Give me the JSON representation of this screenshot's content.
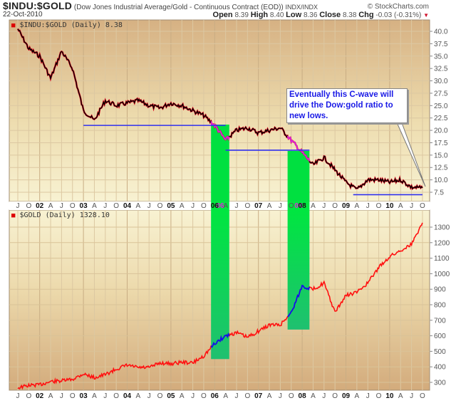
{
  "header": {
    "symbol": "$INDU:$GOLD",
    "description": "(Dow Jones Industrial Average/Gold - Continuous Contract (EOD))",
    "exchange": "INDX/INDX",
    "copyright": "© StockCharts.com",
    "date": "22-Oct-2010",
    "ohlc": {
      "open_label": "Open",
      "open": "8.39",
      "high_label": "High",
      "high": "8.40",
      "low_label": "Low",
      "low": "8.36",
      "close_label": "Close",
      "close": "8.38",
      "chg_label": "Chg",
      "chg": "-0.03 (-0.31%)",
      "chg_icon": "down-triangle-icon"
    }
  },
  "top_panel": {
    "title": "$INDU:$GOLD (Daily) 8.38"
  },
  "bottom_panel": {
    "title": "$GOLD (Daily) 1328.10"
  },
  "annotation": {
    "text": "Eventually this C-wave will drive the Dow:gold ratio to new lows."
  },
  "colors": {
    "background_top": "#f7f0cf",
    "background_bottom": "#d4ae80",
    "price_bar": "#000000",
    "price_bar_down": "#e0001a",
    "gold_line": "#ff1010",
    "highlight_line": "#1010ee",
    "support_line": "#3030ee",
    "highlight_zone": "#00e040",
    "ratio_highlight": "#dd22dd"
  },
  "chart_data": [
    {
      "type": "line",
      "title": "$INDU:$GOLD (Daily) 8.38",
      "xlabel": "",
      "ylabel": "",
      "ylim": [
        6.5,
        42
      ],
      "yticks": [
        7.5,
        10.0,
        12.5,
        15.0,
        17.5,
        20.0,
        22.5,
        25.0,
        27.5,
        30.0,
        32.5,
        35.0,
        37.5,
        40.0
      ],
      "xticks": [
        "J",
        "O",
        "02",
        "A",
        "J",
        "O",
        "03",
        "A",
        "J",
        "O",
        "04",
        "A",
        "J",
        "O",
        "05",
        "A",
        "J",
        "O",
        "06",
        "A",
        "J",
        "O",
        "07",
        "A",
        "J",
        "O",
        "08",
        "A",
        "J",
        "O",
        "09",
        "A",
        "J",
        "O",
        "10",
        "A",
        "J",
        "O"
      ],
      "grid": true,
      "x": [
        "2001-07",
        "2001-10",
        "2002-01",
        "2002-04",
        "2002-07",
        "2002-10",
        "2003-01",
        "2003-04",
        "2003-07",
        "2003-10",
        "2004-01",
        "2004-04",
        "2004-07",
        "2004-10",
        "2005-01",
        "2005-04",
        "2005-07",
        "2005-10",
        "2006-01",
        "2006-04",
        "2006-07",
        "2006-10",
        "2007-01",
        "2007-04",
        "2007-07",
        "2007-10",
        "2008-01",
        "2008-04",
        "2008-07",
        "2008-10",
        "2009-01",
        "2009-04",
        "2009-07",
        "2009-10",
        "2010-01",
        "2010-04",
        "2010-07",
        "2010-10"
      ],
      "series": [
        {
          "name": "$INDU:$GOLD",
          "values": [
            40.5,
            36.5,
            35.0,
            30.5,
            36.0,
            32.5,
            24.0,
            22.0,
            26.0,
            25.0,
            25.5,
            26.0,
            25.0,
            24.5,
            25.5,
            25.0,
            24.0,
            23.0,
            21.0,
            18.0,
            20.0,
            20.5,
            19.5,
            20.0,
            20.5,
            18.0,
            15.5,
            13.0,
            14.5,
            12.0,
            9.5,
            8.0,
            10.0,
            10.0,
            9.5,
            10.0,
            8.5,
            8.38
          ]
        }
      ],
      "support_lines": [
        {
          "value": 21.0,
          "from": "2003-01",
          "to": "2006-04"
        },
        {
          "value": 16.0,
          "from": "2006-04",
          "to": "2008-03"
        },
        {
          "value": 7.0,
          "from": "2009-03",
          "to": "2010-10"
        }
      ],
      "highlight_zones": [
        {
          "from": "2005-12",
          "to": "2006-05",
          "label": "06"
        },
        {
          "from": "2007-09",
          "to": "2008-03",
          "label": "08"
        }
      ],
      "annotation": "Eventually this C-wave will drive the Dow:gold ratio to new lows."
    },
    {
      "type": "line",
      "title": "$GOLD (Daily) 1328.10",
      "xlabel": "",
      "ylabel": "",
      "ylim": [
        240,
        1330
      ],
      "yticks": [
        300,
        400,
        500,
        600,
        700,
        800,
        900,
        1000,
        1100,
        1200,
        1300
      ],
      "xticks": [
        "J",
        "O",
        "02",
        "A",
        "J",
        "O",
        "03",
        "A",
        "J",
        "O",
        "04",
        "A",
        "J",
        "O",
        "05",
        "A",
        "J",
        "O",
        "06",
        "A",
        "J",
        "O",
        "07",
        "A",
        "J",
        "O",
        "08",
        "A",
        "J",
        "O",
        "09",
        "A",
        "J",
        "O",
        "10",
        "A",
        "J",
        "O"
      ],
      "grid": true,
      "x": [
        "2001-07",
        "2001-10",
        "2002-01",
        "2002-04",
        "2002-07",
        "2002-10",
        "2003-01",
        "2003-04",
        "2003-07",
        "2003-10",
        "2004-01",
        "2004-04",
        "2004-07",
        "2004-10",
        "2005-01",
        "2005-04",
        "2005-07",
        "2005-10",
        "2006-01",
        "2006-04",
        "2006-07",
        "2006-10",
        "2007-01",
        "2007-04",
        "2007-07",
        "2007-10",
        "2008-01",
        "2008-04",
        "2008-07",
        "2008-10",
        "2009-01",
        "2009-04",
        "2009-07",
        "2009-10",
        "2010-01",
        "2010-04",
        "2010-07",
        "2010-10"
      ],
      "series": [
        {
          "name": "$GOLD",
          "values": [
            265,
            280,
            285,
            305,
            310,
            320,
            355,
            330,
            350,
            385,
            410,
            395,
            395,
            425,
            420,
            430,
            425,
            470,
            550,
            600,
            620,
            590,
            630,
            670,
            670,
            750,
            920,
            900,
            940,
            750,
            860,
            880,
            940,
            1040,
            1110,
            1150,
            1190,
            1328
          ]
        }
      ],
      "highlight_zones": [
        {
          "from": "2005-12",
          "to": "2006-05",
          "range": [
            450,
            720
          ]
        },
        {
          "from": "2007-09",
          "to": "2008-03",
          "range": [
            640,
            1010
          ]
        }
      ]
    }
  ]
}
